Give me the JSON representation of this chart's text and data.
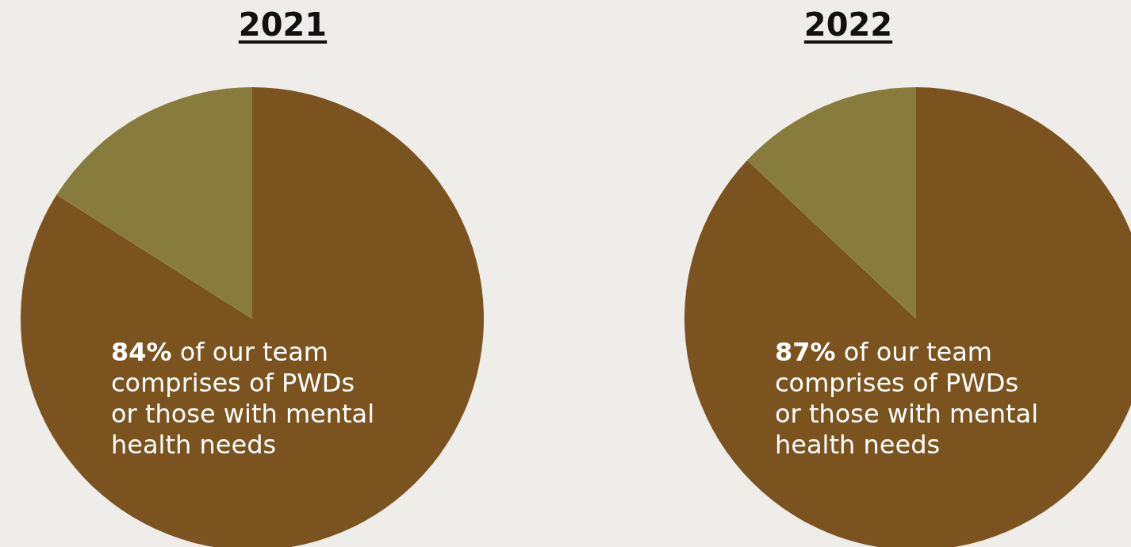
{
  "chart_data": [
    {
      "type": "pie",
      "title": "2021",
      "categories": [
        null,
        null
      ],
      "values": [
        84,
        16
      ],
      "colors": [
        "#7b531f",
        "#877c3b"
      ],
      "annotations": [
        "84% of our team comprises of PWDs or those with mental health needs"
      ]
    },
    {
      "type": "pie",
      "title": "2022",
      "categories": [
        null,
        null
      ],
      "values": [
        87,
        13
      ],
      "colors": [
        "#7b531f",
        "#877c3b"
      ],
      "annotations": [
        "87% of our team comprises of PWDs or those with mental health needs"
      ]
    }
  ]
}
